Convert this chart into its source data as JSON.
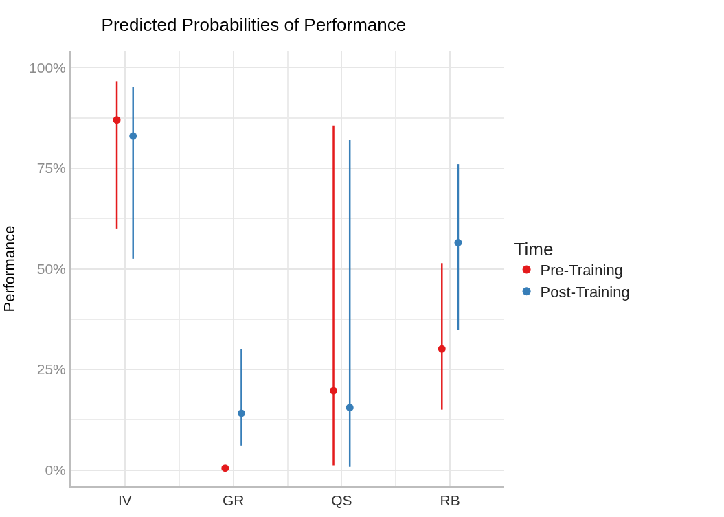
{
  "chart_data": {
    "type": "scatter",
    "title": "Predicted Probabilities of Performance",
    "ylabel": "Performance",
    "legend_title": "Time",
    "categories": [
      "IV",
      "GR",
      "QS",
      "RB"
    ],
    "series": [
      {
        "name": "Pre-Training",
        "color": "#e41a1c",
        "values": [
          87,
          0.5,
          19.7,
          30.1
        ],
        "errors": [
          [
            60,
            96.6
          ],
          null,
          [
            1.2,
            85.6
          ],
          [
            15,
            51.4
          ]
        ]
      },
      {
        "name": "Post-Training",
        "color": "#377eb8",
        "values": [
          83,
          14.1,
          15.5,
          56.5
        ],
        "errors": [
          [
            52.5,
            95.2
          ],
          [
            6.1,
            30
          ],
          [
            0.8,
            82
          ],
          [
            34.8,
            76
          ]
        ]
      }
    ],
    "ylim": [
      -4,
      104
    ],
    "yticks": [
      {
        "value": 0,
        "label": "0%"
      },
      {
        "value": 25,
        "label": "25%"
      },
      {
        "value": 50,
        "label": "50%"
      },
      {
        "value": 75,
        "label": "75%"
      },
      {
        "value": 100,
        "label": "100%"
      }
    ],
    "grid": true,
    "legend": "right",
    "marker": "circle"
  }
}
